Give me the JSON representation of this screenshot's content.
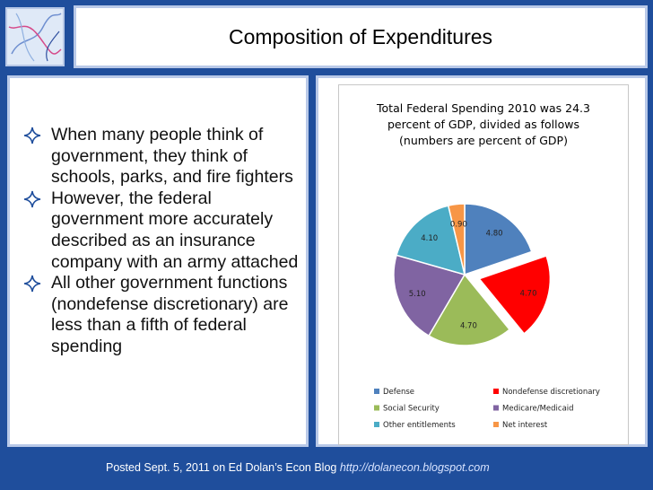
{
  "slide": {
    "title": "Composition of Expenditures",
    "bullets": [
      "When many people think of government, they think of schools, parks, and fire fighters",
      "However, the federal government more accurately described as an insurance company with an army attached",
      "All other government functions (nondefense discretionary) are less than a fifth of federal spending"
    ],
    "footer_text": "Posted Sept. 5, 2011 on Ed Dolan’s Econ Blog",
    "footer_link": "http://dolanecon.blogspot.com"
  },
  "chart_data": {
    "type": "pie",
    "title": "Total Federal Spending 2010 was 24.3\npercent of GDP, divided as follows\n(numbers are percent of GDP)",
    "series": [
      {
        "name": "Defense",
        "value": 4.8,
        "label": "4.80",
        "color": "#4f81bd"
      },
      {
        "name": "Nondefense discretionary",
        "value": 4.7,
        "label": "4.70",
        "color": "#ff0000",
        "exploded": true
      },
      {
        "name": "Social Security",
        "value": 4.7,
        "label": "4.70",
        "color": "#9bbb59"
      },
      {
        "name": "Medicare/Medicaid",
        "value": 5.1,
        "label": "5.10",
        "color": "#8064a2"
      },
      {
        "name": "Other entitlements",
        "value": 4.1,
        "label": "4.10",
        "color": "#4bacc6"
      },
      {
        "name": "Net interest",
        "value": 0.9,
        "label": "0.90",
        "color": "#f79646"
      }
    ],
    "legend_position": "bottom"
  }
}
